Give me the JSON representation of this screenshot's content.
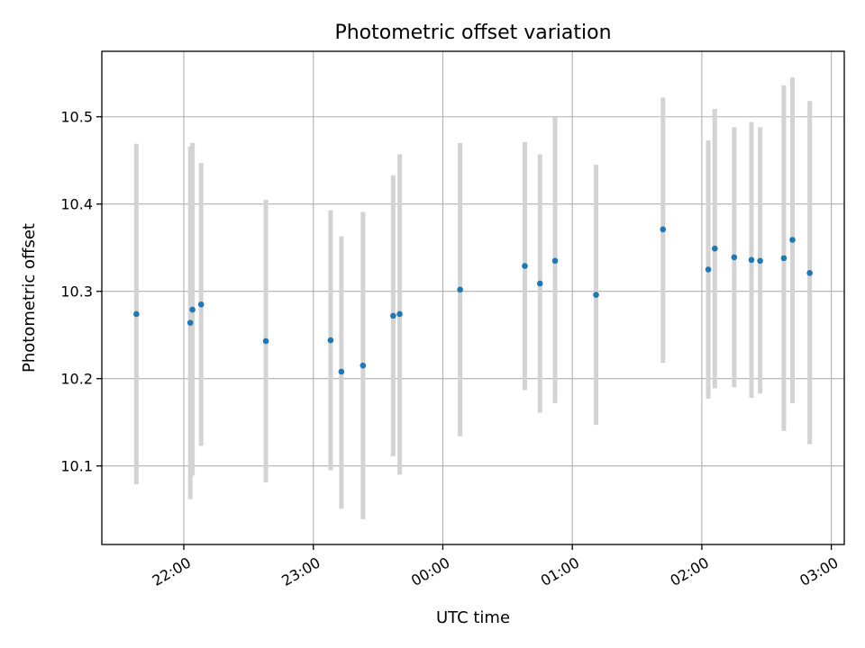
{
  "chart_data": {
    "type": "scatter",
    "title": "Photometric offset variation",
    "xlabel": "UTC time",
    "ylabel": "Photometric offset",
    "x_ticks": [
      "22:00",
      "23:00",
      "00:00",
      "01:00",
      "02:00",
      "03:00"
    ],
    "y_ticks": [
      "10.1",
      "10.2",
      "10.3",
      "10.4",
      "10.5"
    ],
    "xlim": [
      "21:22",
      "03:06"
    ],
    "ylim": [
      10.01,
      10.575
    ],
    "grid": true,
    "colors": {
      "points": "#1f77b4",
      "errorbars": "#d3d3d3",
      "grid": "#b0b0b0"
    },
    "points": [
      {
        "time": "21:38",
        "y": 10.274,
        "low": 10.079,
        "high": 10.469
      },
      {
        "time": "22:03",
        "y": 10.264,
        "low": 10.062,
        "high": 10.466
      },
      {
        "time": "22:04",
        "y": 10.279,
        "low": 10.089,
        "high": 10.47
      },
      {
        "time": "22:08",
        "y": 10.285,
        "low": 10.123,
        "high": 10.447
      },
      {
        "time": "22:38",
        "y": 10.243,
        "low": 10.081,
        "high": 10.405
      },
      {
        "time": "23:08",
        "y": 10.244,
        "low": 10.095,
        "high": 10.393
      },
      {
        "time": "23:13",
        "y": 10.208,
        "low": 10.051,
        "high": 10.363
      },
      {
        "time": "23:23",
        "y": 10.215,
        "low": 10.039,
        "high": 10.391
      },
      {
        "time": "23:37",
        "y": 10.272,
        "low": 10.111,
        "high": 10.433
      },
      {
        "time": "23:40",
        "y": 10.274,
        "low": 10.09,
        "high": 10.457
      },
      {
        "time": "00:08",
        "y": 10.302,
        "low": 10.134,
        "high": 10.47
      },
      {
        "time": "00:38",
        "y": 10.329,
        "low": 10.187,
        "high": 10.471
      },
      {
        "time": "00:45",
        "y": 10.309,
        "low": 10.161,
        "high": 10.457
      },
      {
        "time": "00:52",
        "y": 10.335,
        "low": 10.172,
        "high": 10.5
      },
      {
        "time": "01:11",
        "y": 10.296,
        "low": 10.147,
        "high": 10.445
      },
      {
        "time": "01:42",
        "y": 10.371,
        "low": 10.218,
        "high": 10.522
      },
      {
        "time": "02:03",
        "y": 10.325,
        "low": 10.177,
        "high": 10.473
      },
      {
        "time": "02:06",
        "y": 10.349,
        "low": 10.189,
        "high": 10.509
      },
      {
        "time": "02:15",
        "y": 10.339,
        "low": 10.19,
        "high": 10.488
      },
      {
        "time": "02:23",
        "y": 10.336,
        "low": 10.178,
        "high": 10.494
      },
      {
        "time": "02:27",
        "y": 10.335,
        "low": 10.183,
        "high": 10.488
      },
      {
        "time": "02:38",
        "y": 10.338,
        "low": 10.14,
        "high": 10.536
      },
      {
        "time": "02:42",
        "y": 10.359,
        "low": 10.172,
        "high": 10.545
      },
      {
        "time": "02:50",
        "y": 10.321,
        "low": 10.125,
        "high": 10.518
      }
    ]
  }
}
